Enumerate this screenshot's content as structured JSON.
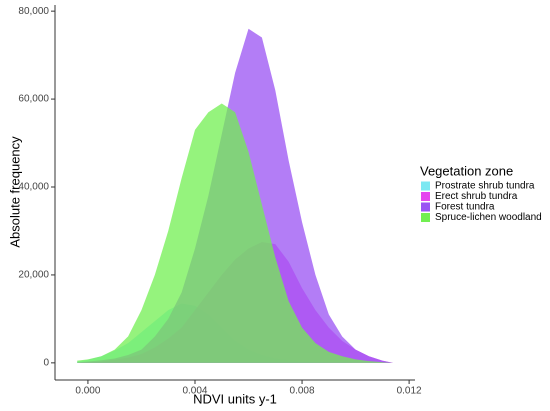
{
  "chart_data": {
    "type": "area",
    "x_label": "NDVI units y-1",
    "y_label": "Absolute frequency",
    "legend_title": "Vegetation zone",
    "legend": "right",
    "x": [
      -0.0004,
      0,
      0.0005,
      0.001,
      0.0015,
      0.002,
      0.0025,
      0.003,
      0.0035,
      0.004,
      0.0045,
      0.005,
      0.0055,
      0.006,
      0.0065,
      0.007,
      0.0075,
      0.008,
      0.0085,
      0.009,
      0.0095,
      0.01,
      0.0105,
      0.011,
      0.0114
    ],
    "series": [
      {
        "name": "Prostrate shrub tundra",
        "color": "#7ce8f2",
        "values": [
          300,
          700,
          1500,
          2800,
          4500,
          7000,
          9500,
          12000,
          13500,
          13000,
          11000,
          8000,
          5000,
          3000,
          1800,
          1000,
          600,
          300,
          150,
          80,
          40,
          20,
          10,
          5,
          0
        ]
      },
      {
        "name": "Erect shrub tundra",
        "color": "#e546ef",
        "values": [
          0,
          100,
          300,
          700,
          1200,
          2000,
          3500,
          5500,
          8000,
          12000,
          16000,
          20000,
          23500,
          26000,
          27500,
          27000,
          23000,
          17000,
          12000,
          8000,
          5000,
          3000,
          1500,
          500,
          0
        ]
      },
      {
        "name": "Forest tundra",
        "color": "#9a52f3",
        "values": [
          100,
          300,
          600,
          1000,
          1800,
          3000,
          6000,
          10000,
          16000,
          26000,
          38000,
          52000,
          66000,
          76000,
          74000,
          62000,
          46000,
          32000,
          20000,
          11000,
          6000,
          3000,
          1500,
          500,
          0
        ]
      },
      {
        "name": "Spruce-lichen woodland",
        "color": "#72ef52",
        "values": [
          500,
          800,
          1500,
          3000,
          6000,
          12000,
          20000,
          30000,
          42000,
          53000,
          57000,
          59000,
          57000,
          48000,
          36000,
          24000,
          14000,
          8000,
          4500,
          2500,
          1500,
          800,
          400,
          150,
          0
        ]
      }
    ],
    "xlim": [
      -0.00123,
      0.01222
    ],
    "xticks": [
      {
        "value": 0,
        "label": "0.000"
      },
      {
        "value": 0.004,
        "label": "0.004"
      },
      {
        "value": 0.008,
        "label": "0.008"
      },
      {
        "value": 0.012,
        "label": "0.012"
      }
    ],
    "ylim": [
      -3900,
      81400
    ],
    "yticks": [
      0,
      {
        "value": 20000,
        "label": "20,000"
      },
      {
        "value": 40000,
        "label": "40,000"
      },
      {
        "value": 60000,
        "label": "60,000"
      },
      {
        "value": 80000,
        "label": "80,000"
      }
    ]
  }
}
